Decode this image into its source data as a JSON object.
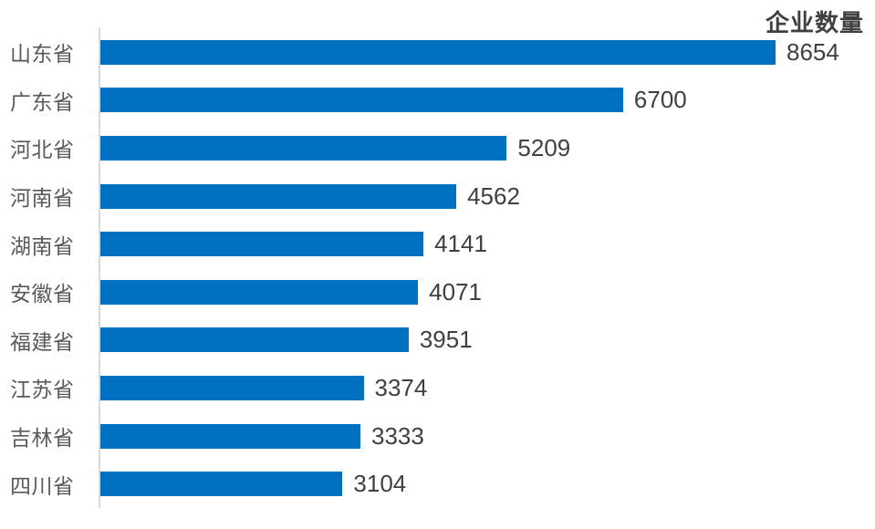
{
  "chart_data": {
    "type": "bar",
    "orientation": "horizontal",
    "title": "企业数量",
    "categories": [
      "山东省",
      "广东省",
      "河北省",
      "河南省",
      "湖南省",
      "安徽省",
      "福建省",
      "江苏省",
      "吉林省",
      "四川省"
    ],
    "values": [
      8654,
      6700,
      5209,
      4562,
      4141,
      4071,
      3951,
      3374,
      3333,
      3104
    ],
    "xlim": [
      0,
      8654
    ],
    "grid": false,
    "legend": false,
    "value_labels_visible": true,
    "sort_order": "descending",
    "colors": {
      "bar": "#0070C0",
      "axis_line": "#D9D9D9",
      "category_label": "#595959",
      "value_label": "#404040",
      "title": "#404040",
      "background": "#FFFFFF"
    }
  }
}
